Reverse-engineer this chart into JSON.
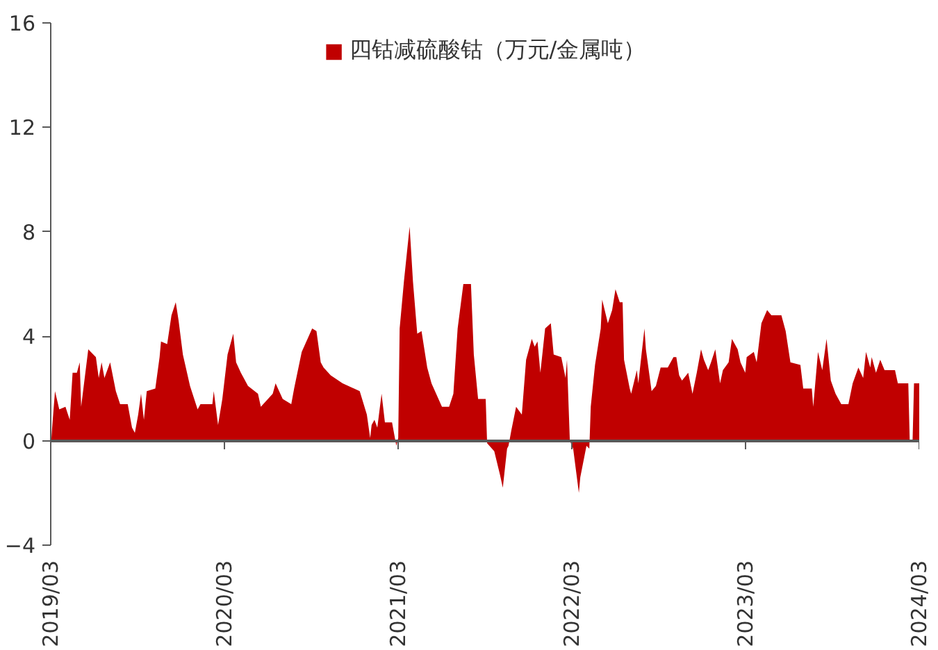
{
  "chart_data": {
    "type": "area",
    "legend": "top",
    "series": [
      {
        "name": "四钴减硫酸钴（万元/金属吨）",
        "color": "#c00000",
        "x": [
          "2019-03-01",
          "2019-03-04",
          "2019-03-10",
          "2019-03-19",
          "2019-04-01",
          "2019-04-10",
          "2019-04-16",
          "2019-04-25",
          "2019-05-01",
          "2019-05-04",
          "2019-05-19",
          "2019-06-04",
          "2019-06-10",
          "2019-06-16",
          "2019-06-22",
          "2019-07-04",
          "2019-07-16",
          "2019-07-25",
          "2019-08-10",
          "2019-08-19",
          "2019-08-25",
          "2019-09-01",
          "2019-09-07",
          "2019-09-13",
          "2019-09-19",
          "2019-10-07",
          "2019-10-16",
          "2019-10-19",
          "2019-11-01",
          "2019-11-10",
          "2019-11-19",
          "2019-11-25",
          "2019-12-04",
          "2019-12-19",
          "2020-01-04",
          "2020-01-10",
          "2020-02-04",
          "2020-02-07",
          "2020-02-16",
          "2020-02-25",
          "2020-03-07",
          "2020-03-19",
          "2020-03-25",
          "2020-04-04",
          "2020-04-19",
          "2020-05-10",
          "2020-05-16",
          "2020-06-10",
          "2020-06-16",
          "2020-07-01",
          "2020-07-19",
          "2020-07-25",
          "2020-08-10",
          "2020-09-01",
          "2020-09-10",
          "2020-09-19",
          "2020-09-25",
          "2020-10-10",
          "2020-11-04",
          "2020-12-10",
          "2020-12-25",
          "2021-01-01",
          "2021-01-04",
          "2021-01-10",
          "2021-01-16",
          "2021-01-25",
          "2021-02-01",
          "2021-02-16",
          "2021-02-25",
          "2021-03-01",
          "2021-03-04",
          "2021-03-13",
          "2021-03-25",
          "2021-04-01",
          "2021-04-10",
          "2021-04-19",
          "2021-05-01",
          "2021-05-10",
          "2021-06-01",
          "2021-06-16",
          "2021-06-25",
          "2021-07-04",
          "2021-07-16",
          "2021-08-01",
          "2021-08-07",
          "2021-08-16",
          "2021-09-01",
          "2021-09-04",
          "2021-09-19",
          "2021-10-01",
          "2021-10-07",
          "2021-10-16",
          "2021-10-19",
          "2021-10-25",
          "2021-11-04",
          "2021-11-16",
          "2021-11-25",
          "2021-12-07",
          "2021-12-13",
          "2021-12-19",
          "2021-12-25",
          "2022-01-04",
          "2022-01-16",
          "2022-01-22",
          "2022-02-07",
          "2022-02-16",
          "2022-02-19",
          "2022-02-25",
          "2022-03-04",
          "2022-03-16",
          "2022-03-19",
          "2022-04-01",
          "2022-04-07",
          "2022-04-10",
          "2022-04-19",
          "2022-05-01",
          "2022-05-04",
          "2022-05-16",
          "2022-05-25",
          "2022-06-01",
          "2022-06-10",
          "2022-06-16",
          "2022-06-19",
          "2022-07-01",
          "2022-07-04",
          "2022-07-16",
          "2022-07-19",
          "2022-08-01",
          "2022-08-04",
          "2022-08-16",
          "2022-08-25",
          "2022-09-04",
          "2022-09-19",
          "2022-10-01",
          "2022-10-07",
          "2022-10-13",
          "2022-10-19",
          "2022-11-01",
          "2022-11-10",
          "2022-11-19",
          "2022-11-28",
          "2022-12-04",
          "2022-12-13",
          "2022-12-19",
          "2022-12-28",
          "2023-01-07",
          "2023-01-13",
          "2023-01-25",
          "2023-02-01",
          "2023-02-13",
          "2023-02-19",
          "2023-03-01",
          "2023-03-04",
          "2023-03-19",
          "2023-03-25",
          "2023-04-04",
          "2023-04-16",
          "2023-04-25",
          "2023-05-16",
          "2023-05-25",
          "2023-06-04",
          "2023-06-25",
          "2023-07-01",
          "2023-07-19",
          "2023-07-22",
          "2023-08-01",
          "2023-08-10",
          "2023-08-19",
          "2023-08-28",
          "2023-09-07",
          "2023-09-19",
          "2023-10-04",
          "2023-10-13",
          "2023-10-25",
          "2023-11-04",
          "2023-11-10",
          "2023-11-19",
          "2023-11-22",
          "2023-12-01",
          "2023-12-10",
          "2023-12-19",
          "2024-01-10",
          "2024-01-16",
          "2024-02-04",
          "2024-02-07",
          "2024-02-10",
          "2024-02-16",
          "2024-02-19",
          "2024-03-01"
        ],
        "values": [
          -0.3,
          0.5,
          1.9,
          1.2,
          1.3,
          0.8,
          2.6,
          2.6,
          3.0,
          1.3,
          3.5,
          3.2,
          2.4,
          3.0,
          2.4,
          3.0,
          1.9,
          1.4,
          1.4,
          0.5,
          0.3,
          1.0,
          1.8,
          0.8,
          1.9,
          2.0,
          3.2,
          3.8,
          3.7,
          4.8,
          5.3,
          4.6,
          3.3,
          2.1,
          1.2,
          1.4,
          1.4,
          1.9,
          0.6,
          1.6,
          3.3,
          4.1,
          3.0,
          2.6,
          2.1,
          1.8,
          1.3,
          1.8,
          2.2,
          1.6,
          1.4,
          2.0,
          3.4,
          4.3,
          4.2,
          3.0,
          2.8,
          2.5,
          2.2,
          1.9,
          1.0,
          0.1,
          0.6,
          0.8,
          0.5,
          1.8,
          0.7,
          0.7,
          -0.2,
          0.1,
          4.3,
          6.1,
          8.2,
          6.1,
          4.1,
          4.2,
          2.8,
          2.2,
          1.3,
          1.3,
          1.8,
          4.3,
          6.0,
          6.0,
          3.3,
          1.6,
          1.6,
          -0.1,
          -0.4,
          -1.3,
          -1.8,
          -0.3,
          -0.2,
          0.4,
          1.3,
          1.0,
          3.1,
          3.9,
          3.6,
          3.8,
          2.6,
          4.3,
          4.5,
          3.3,
          3.2,
          2.4,
          3.1,
          0,
          -0.3,
          -2.0,
          -1.4,
          -0.2,
          -0.3,
          1.3,
          2.9,
          4.3,
          5.4,
          4.5,
          5.0,
          5.8,
          5.3,
          5.3,
          3.1,
          2.0,
          1.8,
          2.7,
          2.2,
          4.3,
          3.5,
          1.9,
          2.1,
          2.8,
          2.8,
          3.2,
          3.2,
          2.5,
          2.3,
          2.6,
          1.8,
          2.6,
          3.5,
          3.1,
          2.7,
          3.0,
          3.5,
          2.2,
          2.7,
          3.0,
          3.9,
          3.5,
          3.0,
          2.6,
          3.2,
          3.4,
          3.0,
          4.5,
          5.0,
          4.8,
          4.8,
          4.2,
          3.0,
          2.9,
          2.0,
          2.0,
          1.3,
          3.4,
          2.7,
          3.9,
          2.3,
          1.8,
          1.4,
          1.4,
          2.2,
          2.8,
          2.4,
          3.4,
          2.8,
          3.2,
          2.6,
          3.1,
          2.7,
          2.7,
          2.2,
          2.2,
          2.2,
          0,
          0,
          2.2,
          2.2
        ]
      }
    ],
    "xlim": [
      "2019-03-01",
      "2024-03-01"
    ],
    "xticks": [
      {
        "value": "2019-03-01",
        "label": "2019/03"
      },
      {
        "value": "2020-03-01",
        "label": "2020/03"
      },
      {
        "value": "2021-03-01",
        "label": "2021/03"
      },
      {
        "value": "2022-03-01",
        "label": "2022/03"
      },
      {
        "value": "2023-03-01",
        "label": "2023/03"
      },
      {
        "value": "2024-03-01",
        "label": "2024/03"
      }
    ],
    "ylim": [
      -4,
      16
    ],
    "yticks": [
      -4,
      0,
      4,
      8,
      12,
      16
    ]
  }
}
